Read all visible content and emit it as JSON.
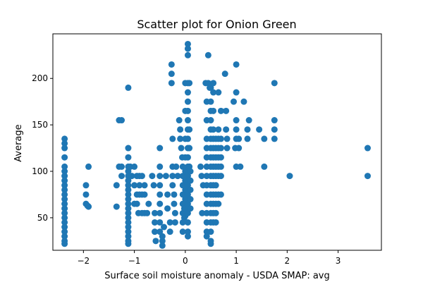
{
  "chart_data": {
    "type": "scatter",
    "title": "Scatter plot for Onion Green",
    "xlabel": "Surface soil moisture anomaly  - USDA SMAP: avg",
    "ylabel": "Average",
    "xlim": [
      -2.6,
      3.85
    ],
    "ylim": [
      15,
      248
    ],
    "xticks": [
      -2,
      -1,
      0,
      1,
      2,
      3
    ],
    "xtick_labels": [
      "−2",
      "−1",
      "0",
      "1",
      "2",
      "3"
    ],
    "yticks": [
      50,
      100,
      150,
      200
    ],
    "ytick_labels": [
      "50",
      "100",
      "150",
      "200"
    ],
    "grid": false,
    "legend": "none",
    "marker_color": "#1f77b4",
    "points": [
      [
        -2.37,
        135
      ],
      [
        -2.37,
        130
      ],
      [
        -2.37,
        125
      ],
      [
        -2.37,
        115
      ],
      [
        -2.37,
        105
      ],
      [
        -2.37,
        100
      ],
      [
        -2.37,
        95
      ],
      [
        -2.37,
        90
      ],
      [
        -2.37,
        85
      ],
      [
        -2.37,
        80
      ],
      [
        -2.37,
        75
      ],
      [
        -2.37,
        70
      ],
      [
        -2.37,
        65
      ],
      [
        -2.37,
        60
      ],
      [
        -2.37,
        55
      ],
      [
        -2.37,
        50
      ],
      [
        -2.37,
        45
      ],
      [
        -2.37,
        40
      ],
      [
        -2.37,
        35
      ],
      [
        -2.37,
        30
      ],
      [
        -2.37,
        25
      ],
      [
        -2.37,
        22
      ],
      [
        -1.9,
        105
      ],
      [
        -1.95,
        85
      ],
      [
        -1.95,
        75
      ],
      [
        -1.95,
        65
      ],
      [
        -1.92,
        63
      ],
      [
        -1.9,
        62
      ],
      [
        -1.35,
        85
      ],
      [
        -1.35,
        62
      ],
      [
        -1.3,
        155
      ],
      [
        -1.25,
        155
      ],
      [
        -1.3,
        105
      ],
      [
        -1.25,
        105
      ],
      [
        -1.25,
        95
      ],
      [
        -1.12,
        190
      ],
      [
        -1.12,
        125
      ],
      [
        -1.12,
        115
      ],
      [
        -1.12,
        105
      ],
      [
        -1.12,
        100
      ],
      [
        -1.12,
        95
      ],
      [
        -1.12,
        90
      ],
      [
        -1.12,
        85
      ],
      [
        -1.12,
        80
      ],
      [
        -1.12,
        75
      ],
      [
        -1.12,
        70
      ],
      [
        -1.12,
        65
      ],
      [
        -1.12,
        60
      ],
      [
        -1.12,
        55
      ],
      [
        -1.12,
        50
      ],
      [
        -1.12,
        45
      ],
      [
        -1.12,
        40
      ],
      [
        -1.12,
        35
      ],
      [
        -1.12,
        30
      ],
      [
        -1.12,
        25
      ],
      [
        -1.12,
        22
      ],
      [
        -1.08,
        105
      ],
      [
        -1.05,
        95
      ],
      [
        -1.0,
        105
      ],
      [
        -0.95,
        95
      ],
      [
        -0.9,
        95
      ],
      [
        -0.85,
        95
      ],
      [
        -0.95,
        75
      ],
      [
        -0.9,
        85
      ],
      [
        -0.9,
        75
      ],
      [
        -0.85,
        75
      ],
      [
        -0.8,
        85
      ],
      [
        -0.8,
        75
      ],
      [
        -1.0,
        85
      ],
      [
        -1.0,
        65
      ],
      [
        -0.95,
        65
      ],
      [
        -0.92,
        55
      ],
      [
        -0.85,
        55
      ],
      [
        -0.8,
        55
      ],
      [
        -0.75,
        55
      ],
      [
        -0.72,
        65
      ],
      [
        -0.65,
        95
      ],
      [
        -0.62,
        85
      ],
      [
        -0.6,
        55
      ],
      [
        -0.6,
        45
      ],
      [
        -0.6,
        35
      ],
      [
        -0.58,
        25
      ],
      [
        -0.5,
        125
      ],
      [
        -0.5,
        105
      ],
      [
        -0.5,
        95
      ],
      [
        -0.5,
        85
      ],
      [
        -0.5,
        75
      ],
      [
        -0.5,
        65
      ],
      [
        -0.5,
        55
      ],
      [
        -0.5,
        45
      ],
      [
        -0.5,
        35
      ],
      [
        -0.45,
        30
      ],
      [
        -0.45,
        25
      ],
      [
        -0.45,
        20
      ],
      [
        -0.42,
        40
      ],
      [
        -0.38,
        95
      ],
      [
        -0.35,
        75
      ],
      [
        -0.35,
        60
      ],
      [
        -0.3,
        45
      ],
      [
        -0.3,
        35
      ],
      [
        -0.27,
        215
      ],
      [
        -0.27,
        205
      ],
      [
        -0.27,
        195
      ],
      [
        -0.25,
        135
      ],
      [
        -0.25,
        105
      ],
      [
        -0.25,
        95
      ],
      [
        -0.25,
        85
      ],
      [
        -0.22,
        75
      ],
      [
        -0.22,
        65
      ],
      [
        -0.2,
        55
      ],
      [
        -0.2,
        45
      ],
      [
        -0.18,
        105
      ],
      [
        -0.15,
        95
      ],
      [
        -0.12,
        155
      ],
      [
        -0.1,
        145
      ],
      [
        -0.1,
        135
      ],
      [
        -0.08,
        125
      ],
      [
        -0.06,
        115
      ],
      [
        -0.05,
        105
      ],
      [
        -0.05,
        95
      ],
      [
        -0.05,
        85
      ],
      [
        -0.05,
        75
      ],
      [
        -0.05,
        65
      ],
      [
        -0.05,
        55
      ],
      [
        -0.05,
        45
      ],
      [
        -0.05,
        35
      ],
      [
        -0.02,
        60
      ],
      [
        -0.02,
        50
      ],
      [
        0.0,
        195
      ],
      [
        0.0,
        165
      ],
      [
        0.0,
        135
      ],
      [
        0.0,
        115
      ],
      [
        0.0,
        100
      ],
      [
        0.0,
        90
      ],
      [
        0.0,
        80
      ],
      [
        0.0,
        70
      ],
      [
        0.0,
        60
      ],
      [
        0.0,
        52
      ],
      [
        0.05,
        237
      ],
      [
        0.05,
        232
      ],
      [
        0.05,
        225
      ],
      [
        0.05,
        195
      ],
      [
        0.05,
        185
      ],
      [
        0.05,
        175
      ],
      [
        0.05,
        165
      ],
      [
        0.05,
        155
      ],
      [
        0.05,
        145
      ],
      [
        0.05,
        135
      ],
      [
        0.05,
        125
      ],
      [
        0.05,
        115
      ],
      [
        0.05,
        105
      ],
      [
        0.05,
        95
      ],
      [
        0.05,
        85
      ],
      [
        0.05,
        75
      ],
      [
        0.05,
        65
      ],
      [
        0.05,
        55
      ],
      [
        0.05,
        45
      ],
      [
        0.05,
        35
      ],
      [
        0.05,
        30
      ],
      [
        0.08,
        195
      ],
      [
        0.08,
        145
      ],
      [
        0.08,
        125
      ],
      [
        0.08,
        105
      ],
      [
        0.1,
        100
      ],
      [
        0.1,
        90
      ],
      [
        0.1,
        80
      ],
      [
        0.1,
        70
      ],
      [
        0.1,
        60
      ],
      [
        0.3,
        105
      ],
      [
        0.32,
        95
      ],
      [
        0.35,
        85
      ],
      [
        0.33,
        55
      ],
      [
        0.4,
        195
      ],
      [
        0.42,
        175
      ],
      [
        0.42,
        155
      ],
      [
        0.42,
        135
      ],
      [
        0.42,
        125
      ],
      [
        0.42,
        115
      ],
      [
        0.42,
        105
      ],
      [
        0.42,
        95
      ],
      [
        0.42,
        85
      ],
      [
        0.42,
        75
      ],
      [
        0.42,
        65
      ],
      [
        0.42,
        55
      ],
      [
        0.42,
        45
      ],
      [
        0.42,
        35
      ],
      [
        0.42,
        30
      ],
      [
        0.45,
        225
      ],
      [
        0.45,
        195
      ],
      [
        0.48,
        190
      ],
      [
        0.5,
        190
      ],
      [
        0.5,
        175
      ],
      [
        0.5,
        165
      ],
      [
        0.5,
        155
      ],
      [
        0.5,
        145
      ],
      [
        0.5,
        135
      ],
      [
        0.5,
        125
      ],
      [
        0.5,
        115
      ],
      [
        0.5,
        105
      ],
      [
        0.5,
        95
      ],
      [
        0.5,
        85
      ],
      [
        0.5,
        75
      ],
      [
        0.5,
        65
      ],
      [
        0.5,
        55
      ],
      [
        0.5,
        45
      ],
      [
        0.5,
        35
      ],
      [
        0.5,
        25
      ],
      [
        0.5,
        22
      ],
      [
        0.55,
        195
      ],
      [
        0.55,
        185
      ],
      [
        0.55,
        165
      ],
      [
        0.55,
        145
      ],
      [
        0.55,
        135
      ],
      [
        0.55,
        125
      ],
      [
        0.55,
        115
      ],
      [
        0.55,
        105
      ],
      [
        0.55,
        95
      ],
      [
        0.55,
        85
      ],
      [
        0.55,
        75
      ],
      [
        0.55,
        65
      ],
      [
        0.55,
        55
      ],
      [
        0.55,
        45
      ],
      [
        0.6,
        135
      ],
      [
        0.6,
        125
      ],
      [
        0.6,
        115
      ],
      [
        0.6,
        105
      ],
      [
        0.6,
        95
      ],
      [
        0.6,
        85
      ],
      [
        0.6,
        75
      ],
      [
        0.6,
        65
      ],
      [
        0.6,
        55
      ],
      [
        0.6,
        45
      ],
      [
        0.65,
        185
      ],
      [
        0.65,
        145
      ],
      [
        0.65,
        135
      ],
      [
        0.65,
        125
      ],
      [
        0.65,
        115
      ],
      [
        0.65,
        105
      ],
      [
        0.65,
        95
      ],
      [
        0.65,
        75
      ],
      [
        0.65,
        65
      ],
      [
        0.7,
        165
      ],
      [
        0.7,
        135
      ],
      [
        0.7,
        125
      ],
      [
        0.7,
        115
      ],
      [
        0.7,
        105
      ],
      [
        0.7,
        95
      ],
      [
        0.7,
        75
      ],
      [
        0.78,
        205
      ],
      [
        0.8,
        165
      ],
      [
        0.8,
        145
      ],
      [
        0.82,
        135
      ],
      [
        0.82,
        125
      ],
      [
        0.95,
        175
      ],
      [
        0.98,
        125
      ],
      [
        1.0,
        215
      ],
      [
        1.0,
        185
      ],
      [
        1.0,
        155
      ],
      [
        1.0,
        145
      ],
      [
        1.0,
        135
      ],
      [
        1.0,
        105
      ],
      [
        1.05,
        135
      ],
      [
        1.05,
        125
      ],
      [
        1.08,
        105
      ],
      [
        1.15,
        175
      ],
      [
        1.22,
        145
      ],
      [
        1.22,
        135
      ],
      [
        1.25,
        155
      ],
      [
        1.45,
        145
      ],
      [
        1.55,
        135
      ],
      [
        1.55,
        105
      ],
      [
        1.75,
        195
      ],
      [
        1.75,
        155
      ],
      [
        1.75,
        145
      ],
      [
        1.75,
        135
      ],
      [
        2.05,
        95
      ],
      [
        3.58,
        125
      ],
      [
        3.58,
        95
      ]
    ]
  }
}
